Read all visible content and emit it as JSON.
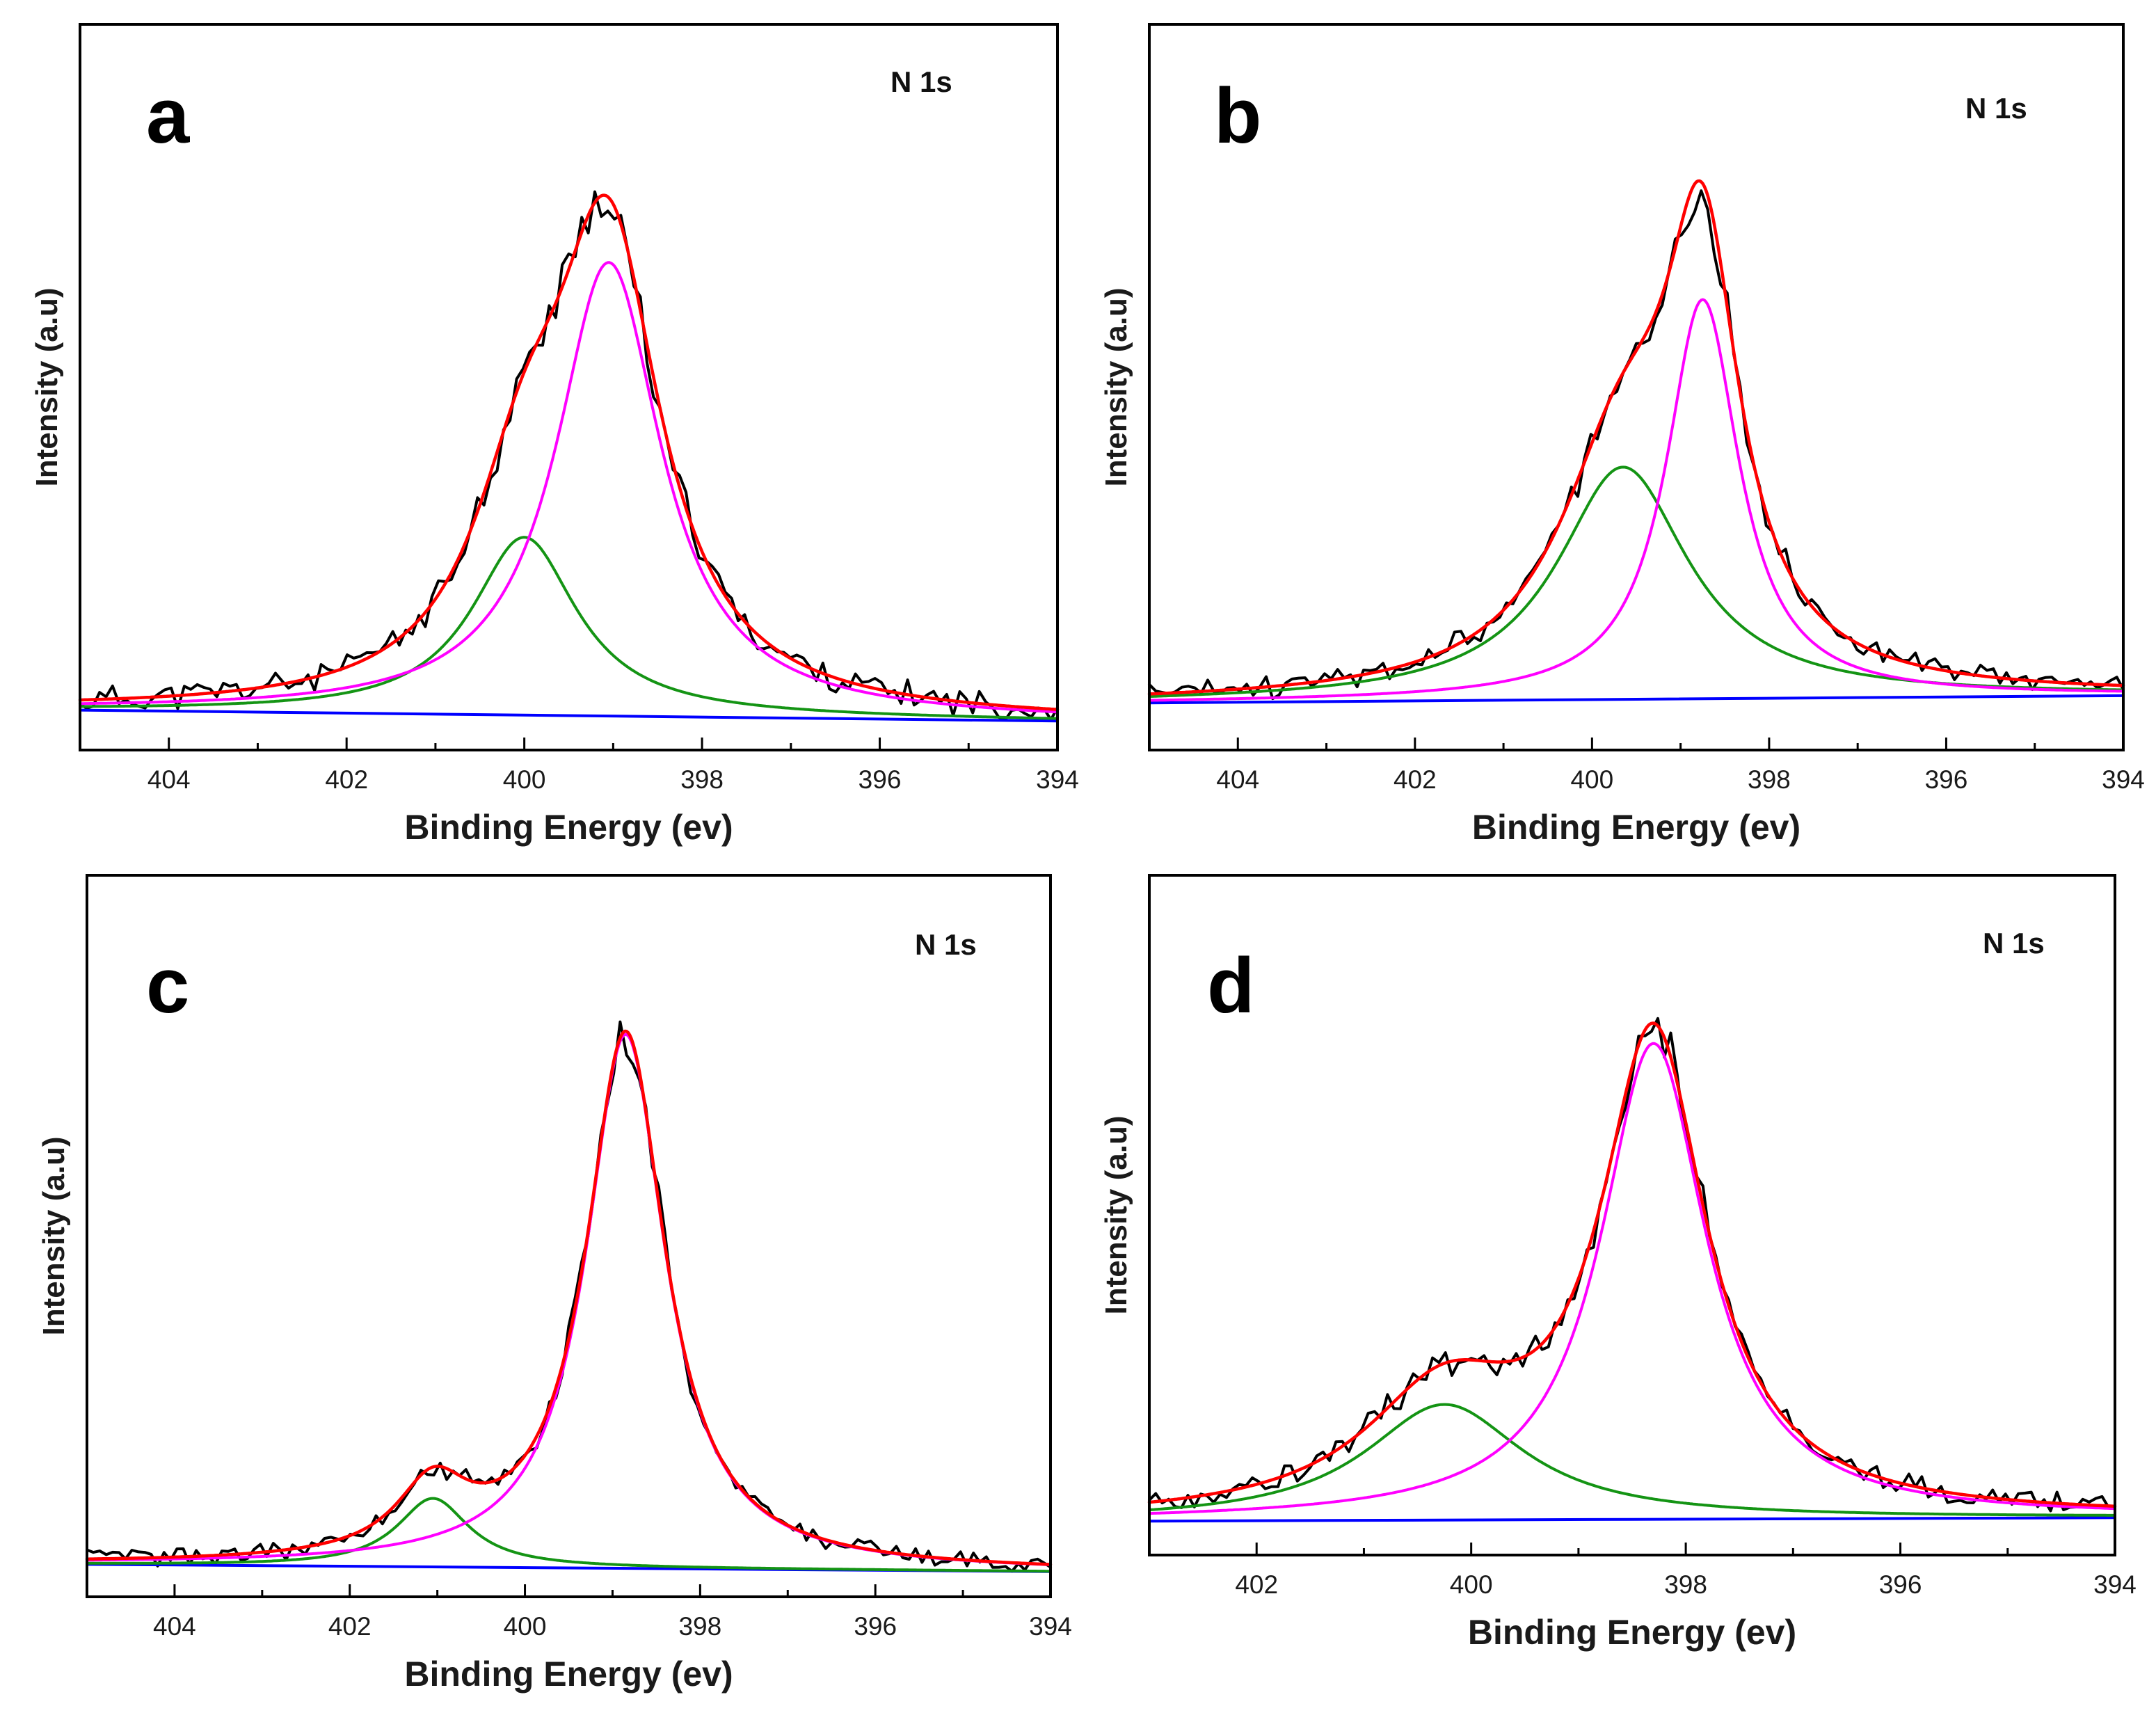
{
  "figure": {
    "description": "N 1s XPS spectra, four panels"
  },
  "chart_data": [
    {
      "type": "line",
      "panel_label": "a",
      "annotation": "N 1s",
      "xlabel": "Binding Energy (ev)",
      "ylabel": "Intensity (a.u)",
      "xlim": [
        405,
        394
      ],
      "ylim": [
        0,
        100
      ],
      "xticks": [
        404,
        402,
        400,
        398,
        396,
        394
      ],
      "baseline": [
        5.5,
        4.0
      ],
      "peaks": [
        {
          "name": "magenta",
          "color": "#ff00ff",
          "center": 399.05,
          "amp": 62.5,
          "width": 0.72
        },
        {
          "name": "green",
          "color": "#149414",
          "center": 400.0,
          "amp": 24.5,
          "width": 0.72
        }
      ],
      "series": [
        {
          "name": "experimental",
          "color": "#000000"
        },
        {
          "name": "envelope",
          "color": "#ff0000"
        },
        {
          "name": "peak-1",
          "color": "#ff00ff"
        },
        {
          "name": "peak-2",
          "color": "#149414"
        },
        {
          "name": "background",
          "color": "#0000ff"
        }
      ],
      "noise_seed": 11,
      "noise_amp": 3.5
    },
    {
      "type": "line",
      "panel_label": "b",
      "annotation": "N 1s",
      "xlabel": "Binding Energy (ev)",
      "ylabel": "Intensity (a.u)",
      "xlim": [
        405,
        394
      ],
      "ylim": [
        0,
        100
      ],
      "xticks": [
        404,
        402,
        400,
        398,
        396,
        394
      ],
      "baseline": [
        6.5,
        7.5
      ],
      "peaks": [
        {
          "name": "magenta",
          "color": "#ff00ff",
          "center": 398.75,
          "amp": 55.0,
          "width": 0.5
        },
        {
          "name": "green",
          "color": "#149414",
          "center": 399.65,
          "amp": 32.0,
          "width": 0.9
        }
      ],
      "series": [
        {
          "name": "experimental",
          "color": "#000000"
        },
        {
          "name": "envelope",
          "color": "#ff0000"
        },
        {
          "name": "peak-1",
          "color": "#ff00ff"
        },
        {
          "name": "peak-2",
          "color": "#149414"
        },
        {
          "name": "background",
          "color": "#0000ff"
        }
      ],
      "noise_seed": 23,
      "noise_amp": 3.0
    },
    {
      "type": "line",
      "panel_label": "c",
      "annotation": "N 1s",
      "xlabel": "Binding Energy (ev)",
      "ylabel": "Intensity (a.u)",
      "xlim": [
        405,
        394
      ],
      "ylim": [
        0,
        100
      ],
      "xticks": [
        404,
        402,
        400,
        398,
        396,
        394
      ],
      "baseline": [
        4.5,
        3.5
      ],
      "peaks": [
        {
          "name": "magenta",
          "color": "#ff00ff",
          "center": 398.85,
          "amp": 74.0,
          "width": 0.55
        },
        {
          "name": "green",
          "color": "#149414",
          "center": 401.05,
          "amp": 9.5,
          "width": 0.5
        }
      ],
      "series": [
        {
          "name": "experimental",
          "color": "#000000"
        },
        {
          "name": "envelope",
          "color": "#ff0000"
        },
        {
          "name": "peak-1",
          "color": "#ff00ff"
        },
        {
          "name": "peak-2",
          "color": "#149414"
        },
        {
          "name": "background",
          "color": "#0000ff"
        }
      ],
      "noise_seed": 37,
      "noise_amp": 2.5
    },
    {
      "type": "line",
      "panel_label": "d",
      "annotation": "N 1s",
      "xlabel": "Binding Energy (ev)",
      "ylabel": "Intensity (a.u)",
      "xlim": [
        403,
        394
      ],
      "ylim": [
        0,
        100
      ],
      "xticks": [
        402,
        400,
        398,
        396,
        394
      ],
      "baseline": [
        5.0,
        5.5
      ],
      "peaks": [
        {
          "name": "magenta",
          "color": "#ff00ff",
          "center": 398.3,
          "amp": 70.0,
          "width": 0.6
        },
        {
          "name": "green",
          "color": "#149414",
          "center": 400.25,
          "amp": 17.0,
          "width": 0.9
        }
      ],
      "series": [
        {
          "name": "experimental",
          "color": "#000000"
        },
        {
          "name": "envelope",
          "color": "#ff0000"
        },
        {
          "name": "peak-1",
          "color": "#ff00ff"
        },
        {
          "name": "peak-2",
          "color": "#149414"
        },
        {
          "name": "background",
          "color": "#0000ff"
        }
      ],
      "noise_seed": 53,
      "noise_amp": 3.0
    }
  ]
}
